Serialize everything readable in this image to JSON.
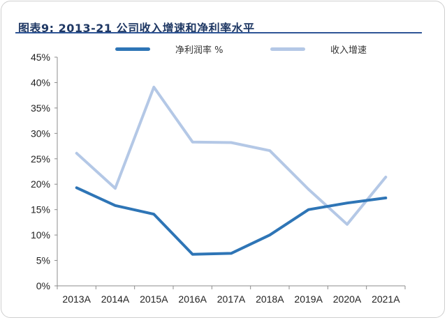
{
  "title": "图表9:  2013-21 公司收入增速和净利率水平",
  "colors": {
    "net_margin": "#2e75b6",
    "revenue_growth": "#b4c8e6",
    "title": "#1f3864",
    "title_rule": "#2e5596"
  },
  "legend": [
    {
      "name": "净利润率 %",
      "series": "net_margin"
    },
    {
      "name": "收入增速",
      "series": "revenue_growth"
    }
  ],
  "chart_data": {
    "type": "line",
    "title": "图表9:  2013-21 公司收入增速和净利率水平",
    "xlabel": "",
    "ylabel": "",
    "categories": [
      "2013A",
      "2014A",
      "2015A",
      "2016A",
      "2017A",
      "2018A",
      "2019A",
      "2020A",
      "2021A"
    ],
    "y_ticks": [
      "0%",
      "5%",
      "10%",
      "15%",
      "20%",
      "25%",
      "30%",
      "35%",
      "40%",
      "45%"
    ],
    "ylim": [
      0,
      45
    ],
    "y_unit": "%",
    "grid": false,
    "legend_position": "top-center",
    "series": [
      {
        "name": "净利润率 %",
        "key": "net_margin",
        "values": [
          19.3,
          15.8,
          14.1,
          6.2,
          6.4,
          10.0,
          15.0,
          16.3,
          17.3
        ]
      },
      {
        "name": "收入增速",
        "key": "revenue_growth",
        "values": [
          26.1,
          19.2,
          39.1,
          28.3,
          28.2,
          26.6,
          19.0,
          12.1,
          21.4
        ]
      }
    ]
  }
}
